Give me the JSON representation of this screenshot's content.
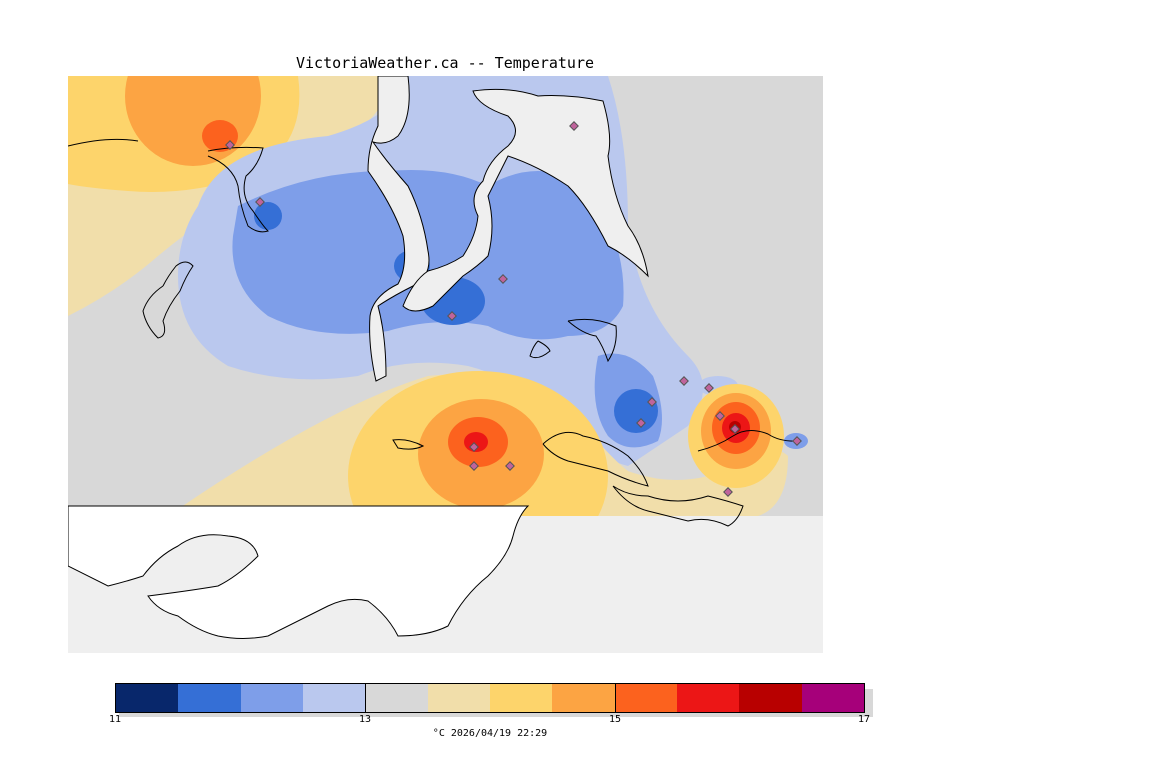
{
  "title": "VictoriaWeather.ca -- Temperature",
  "colors": {
    "background": "#ffffff",
    "no_data": "#efefef",
    "coast": "#000000",
    "station": "#c0649c"
  },
  "legend": {
    "ticks": [
      "11",
      "13",
      "15",
      "17"
    ],
    "colors": [
      "#08276b",
      "#356fd6",
      "#7e9ee9",
      "#bac8ee",
      "#d8d8d8",
      "#f1deaa",
      "#fdd46b",
      "#fca443",
      "#fc621e",
      "#ec1616",
      "#b80000",
      "#a6007a"
    ],
    "units_time": "°C   2026/04/19 22:29"
  }
}
